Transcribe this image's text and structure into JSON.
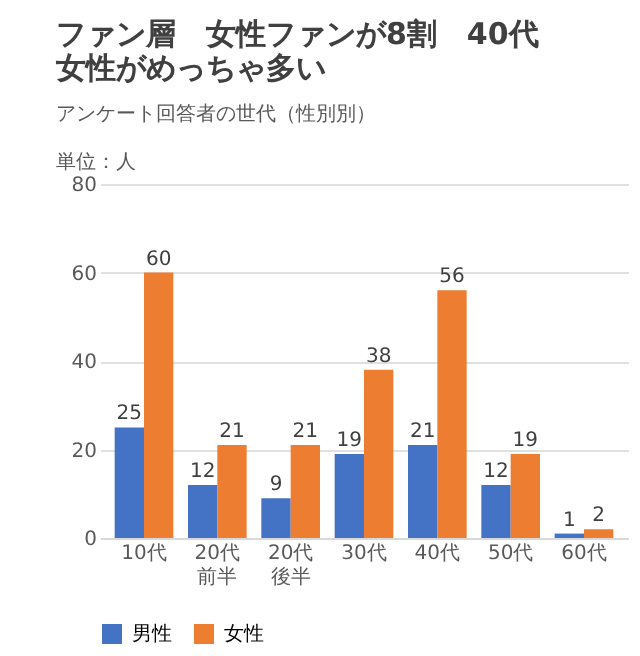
{
  "chart_data": {
    "type": "bar",
    "title": "ファン層　女性ファンが8割　40代女性がめっちゃ多い",
    "subtitle": "アンケート回答者の世代（性別別）",
    "ylabel": "単位：人",
    "categories": [
      "10代",
      "20代前半",
      "20代後半",
      "30代",
      "40代",
      "50代",
      "60代"
    ],
    "series": [
      {
        "name": "男性",
        "color": "#4472c4",
        "values": [
          25,
          12,
          9,
          19,
          21,
          12,
          1
        ]
      },
      {
        "name": "女性",
        "color": "#ed7d31",
        "values": [
          60,
          21,
          21,
          38,
          56,
          19,
          2
        ]
      }
    ],
    "ylim": [
      0,
      80
    ],
    "yticks": [
      0,
      20,
      40,
      60,
      80
    ],
    "grid": "y",
    "legend": "bottom",
    "data_labels": true
  }
}
